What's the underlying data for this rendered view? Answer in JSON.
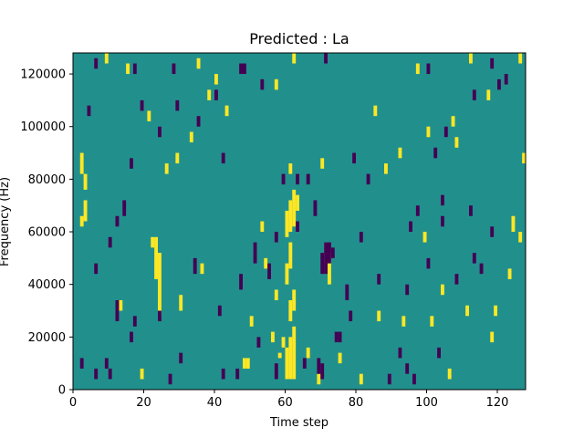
{
  "chart_data": {
    "type": "heatmap",
    "title": "Predicted : La",
    "xlabel": "Time step",
    "ylabel": "Frequency (Hz)",
    "xlim": [
      0,
      128
    ],
    "ylim": [
      0,
      128000
    ],
    "x_ticks": [
      0,
      20,
      40,
      60,
      80,
      100,
      120
    ],
    "x_tick_labels": [
      "0",
      "20",
      "40",
      "60",
      "80",
      "100",
      "120"
    ],
    "y_ticks": [
      0,
      20000,
      40000,
      60000,
      80000,
      100000,
      120000
    ],
    "y_tick_labels": [
      "0",
      "20000",
      "40000",
      "60000",
      "80000",
      "100000",
      "120000"
    ],
    "grid": false,
    "colors": {
      "background": "#21908d",
      "high": "#fde725",
      "low": "#440154"
    },
    "column_width": 1,
    "value_scale": "-1 = low, 0 = neutral, 1 = high",
    "cells": [
      [
        60,
        4000,
        16000,
        1
      ],
      [
        61,
        4000,
        20000,
        1
      ],
      [
        62,
        4000,
        24000,
        1
      ],
      [
        61,
        26000,
        34000,
        1
      ],
      [
        62,
        30000,
        38000,
        1
      ],
      [
        60,
        40000,
        48000,
        1
      ],
      [
        61,
        46000,
        56000,
        1
      ],
      [
        60,
        58000,
        68000,
        1
      ],
      [
        61,
        60000,
        72000,
        1
      ],
      [
        62,
        62000,
        76000,
        1
      ],
      [
        63,
        68000,
        74000,
        1
      ],
      [
        61,
        82000,
        86000,
        1
      ],
      [
        59,
        16000,
        20000,
        1
      ],
      [
        58,
        12000,
        14000,
        1
      ],
      [
        23,
        42000,
        58000,
        1
      ],
      [
        24,
        28000,
        52000,
        1
      ],
      [
        22,
        54000,
        58000,
        1
      ],
      [
        48,
        8000,
        12000,
        1
      ],
      [
        49,
        8000,
        12000,
        1
      ],
      [
        2,
        62000,
        66000,
        1
      ],
      [
        3,
        64000,
        72000,
        1
      ],
      [
        3,
        76000,
        82000,
        1
      ],
      [
        2,
        82000,
        90000,
        1
      ],
      [
        9,
        124000,
        128000,
        1
      ],
      [
        62,
        124000,
        128000,
        1
      ],
      [
        97,
        120000,
        124000,
        1
      ],
      [
        112,
        124000,
        128000,
        1
      ],
      [
        126,
        124000,
        128000,
        1
      ],
      [
        127,
        86000,
        90000,
        1
      ],
      [
        71,
        48000,
        56000,
        1
      ],
      [
        72,
        40000,
        52000,
        1
      ],
      [
        99,
        56000,
        60000,
        1
      ],
      [
        106,
        4000,
        8000,
        1
      ],
      [
        111,
        28000,
        32000,
        1
      ],
      [
        119,
        28000,
        32000,
        1
      ],
      [
        123,
        42000,
        46000,
        1
      ],
      [
        126,
        56000,
        60000,
        1
      ],
      [
        88,
        82000,
        86000,
        1
      ],
      [
        92,
        88000,
        92000,
        1
      ],
      [
        40,
        116000,
        120000,
        1
      ],
      [
        43,
        104000,
        108000,
        1
      ],
      [
        38,
        110000,
        114000,
        1
      ],
      [
        33,
        94000,
        98000,
        1
      ],
      [
        29,
        86000,
        90000,
        1
      ],
      [
        26,
        82000,
        86000,
        1
      ],
      [
        19,
        4000,
        8000,
        1
      ],
      [
        13,
        30000,
        34000,
        1
      ],
      [
        30,
        30000,
        36000,
        1
      ],
      [
        36,
        44000,
        48000,
        1
      ],
      [
        50,
        24000,
        28000,
        1
      ],
      [
        57,
        34000,
        38000,
        1
      ],
      [
        54,
        46000,
        50000,
        1
      ],
      [
        53,
        60000,
        64000,
        1
      ],
      [
        56,
        18000,
        22000,
        1
      ],
      [
        66,
        12000,
        16000,
        1
      ],
      [
        69,
        2000,
        6000,
        1
      ],
      [
        75,
        10000,
        14000,
        1
      ],
      [
        81,
        2000,
        6000,
        1
      ],
      [
        86,
        26000,
        30000,
        1
      ],
      [
        93,
        24000,
        28000,
        1
      ],
      [
        101,
        24000,
        28000,
        1
      ],
      [
        104,
        36000,
        40000,
        1
      ],
      [
        118,
        18000,
        22000,
        1
      ],
      [
        124,
        60000,
        66000,
        1
      ],
      [
        117,
        110000,
        114000,
        1
      ],
      [
        107,
        100000,
        104000,
        1
      ],
      [
        108,
        92000,
        96000,
        1
      ],
      [
        100,
        96000,
        100000,
        1
      ],
      [
        15,
        120000,
        124000,
        1
      ],
      [
        21,
        102000,
        106000,
        1
      ],
      [
        35,
        122000,
        126000,
        1
      ],
      [
        57,
        114000,
        118000,
        1
      ],
      [
        70,
        84000,
        88000,
        1
      ],
      [
        85,
        104000,
        108000,
        1
      ],
      [
        2,
        8000,
        12000,
        -1
      ],
      [
        6,
        4000,
        8000,
        -1
      ],
      [
        9,
        8000,
        12000,
        -1
      ],
      [
        10,
        4000,
        8000,
        -1
      ],
      [
        12,
        26000,
        34000,
        -1
      ],
      [
        17,
        24000,
        28000,
        -1
      ],
      [
        16,
        18000,
        22000,
        -1
      ],
      [
        34,
        44000,
        50000,
        -1
      ],
      [
        41,
        28000,
        32000,
        -1
      ],
      [
        47,
        38000,
        44000,
        -1
      ],
      [
        51,
        48000,
        56000,
        -1
      ],
      [
        55,
        42000,
        48000,
        -1
      ],
      [
        57,
        56000,
        60000,
        -1
      ],
      [
        59,
        78000,
        82000,
        -1
      ],
      [
        63,
        78000,
        82000,
        -1
      ],
      [
        66,
        78000,
        82000,
        -1
      ],
      [
        68,
        66000,
        72000,
        -1
      ],
      [
        70,
        44000,
        52000,
        -1
      ],
      [
        71,
        44000,
        56000,
        -1
      ],
      [
        72,
        48000,
        56000,
        -1
      ],
      [
        73,
        50000,
        54000,
        -1
      ],
      [
        74,
        18000,
        22000,
        -1
      ],
      [
        75,
        18000,
        22000,
        -1
      ],
      [
        70,
        4000,
        10000,
        -1
      ],
      [
        69,
        6000,
        12000,
        -1
      ],
      [
        65,
        8000,
        12000,
        -1
      ],
      [
        57,
        4000,
        10000,
        -1
      ],
      [
        52,
        16000,
        20000,
        -1
      ],
      [
        46,
        4000,
        8000,
        -1
      ],
      [
        42,
        4000,
        8000,
        -1
      ],
      [
        30,
        10000,
        14000,
        -1
      ],
      [
        27,
        2000,
        6000,
        -1
      ],
      [
        24,
        26000,
        30000,
        -1
      ],
      [
        86,
        40000,
        44000,
        -1
      ],
      [
        89,
        2000,
        6000,
        -1
      ],
      [
        94,
        6000,
        10000,
        -1
      ],
      [
        96,
        2000,
        6000,
        -1
      ],
      [
        100,
        46000,
        50000,
        -1
      ],
      [
        104,
        62000,
        66000,
        -1
      ],
      [
        108,
        40000,
        44000,
        -1
      ],
      [
        113,
        48000,
        52000,
        -1
      ],
      [
        118,
        58000,
        62000,
        -1
      ],
      [
        112,
        66000,
        70000,
        -1
      ],
      [
        104,
        70000,
        74000,
        -1
      ],
      [
        95,
        60000,
        64000,
        -1
      ],
      [
        102,
        88000,
        92000,
        -1
      ],
      [
        105,
        96000,
        100000,
        -1
      ],
      [
        113,
        110000,
        114000,
        -1
      ],
      [
        120,
        114000,
        118000,
        -1
      ],
      [
        118,
        122000,
        126000,
        -1
      ],
      [
        100,
        120000,
        124000,
        -1
      ],
      [
        83,
        78000,
        82000,
        -1
      ],
      [
        79,
        86000,
        90000,
        -1
      ],
      [
        53,
        114000,
        118000,
        -1
      ],
      [
        48,
        120000,
        124000,
        -1
      ],
      [
        40,
        110000,
        114000,
        -1
      ],
      [
        42,
        86000,
        90000,
        -1
      ],
      [
        35,
        100000,
        104000,
        -1
      ],
      [
        29,
        106000,
        110000,
        -1
      ],
      [
        24,
        96000,
        100000,
        -1
      ],
      [
        19,
        106000,
        110000,
        -1
      ],
      [
        16,
        84000,
        88000,
        -1
      ],
      [
        14,
        66000,
        72000,
        -1
      ],
      [
        12,
        62000,
        66000,
        -1
      ],
      [
        10,
        54000,
        58000,
        -1
      ],
      [
        6,
        44000,
        48000,
        -1
      ],
      [
        4,
        104000,
        108000,
        -1
      ],
      [
        6,
        122000,
        126000,
        -1
      ],
      [
        17,
        120000,
        124000,
        -1
      ],
      [
        28,
        120000,
        124000,
        -1
      ],
      [
        47,
        120000,
        124000,
        -1
      ],
      [
        71,
        124000,
        128000,
        -1
      ],
      [
        94,
        36000,
        40000,
        -1
      ],
      [
        97,
        66000,
        70000,
        -1
      ],
      [
        115,
        44000,
        48000,
        -1
      ],
      [
        122,
        116000,
        120000,
        -1
      ],
      [
        63,
        60000,
        64000,
        -1
      ],
      [
        77,
        34000,
        40000,
        -1
      ],
      [
        78,
        26000,
        30000,
        -1
      ],
      [
        81,
        56000,
        60000,
        -1
      ],
      [
        92,
        12000,
        16000,
        -1
      ],
      [
        103,
        12000,
        16000,
        -1
      ]
    ]
  }
}
